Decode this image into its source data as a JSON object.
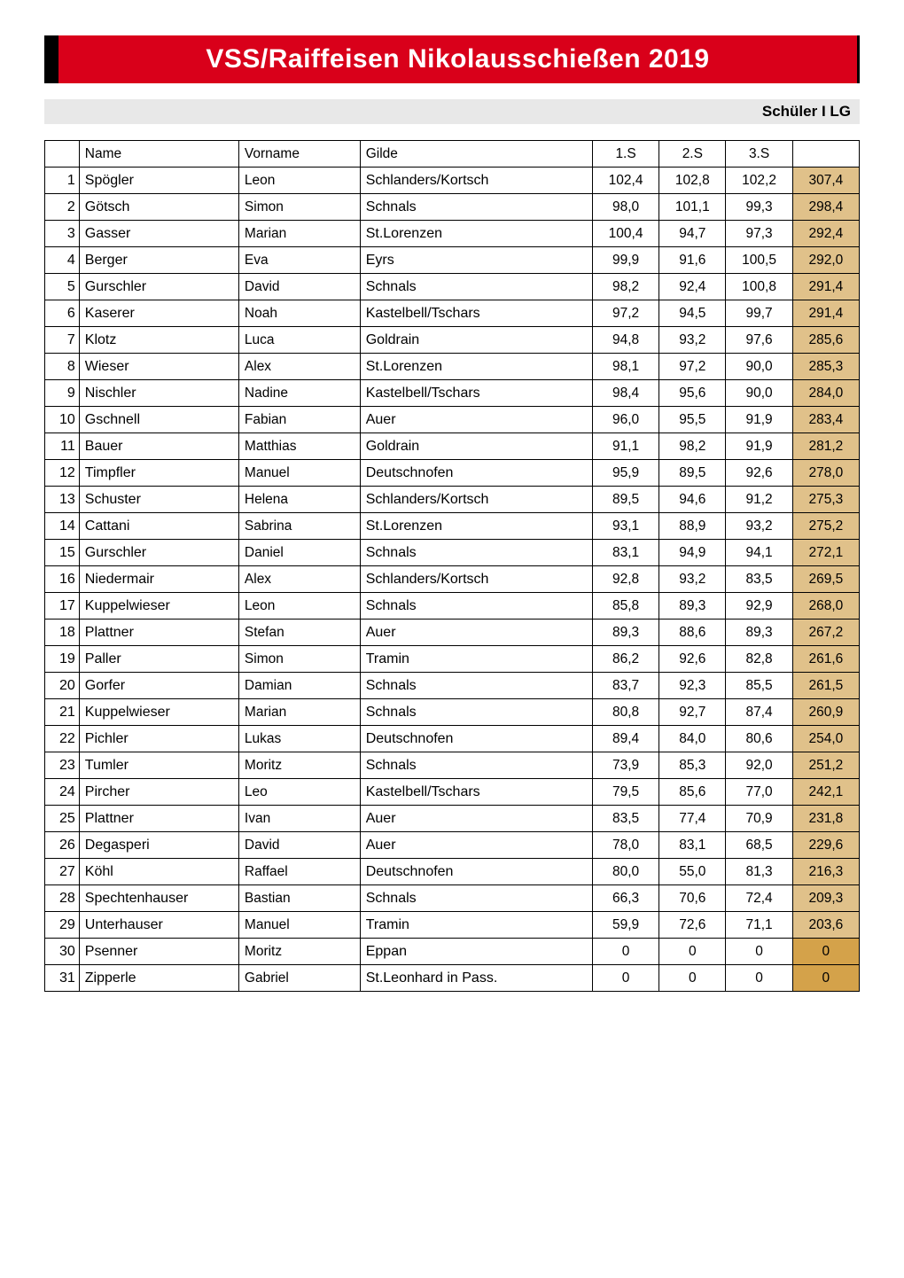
{
  "title": "VSS/Raiffeisen Nikolausschießen 2019",
  "subtitle": "Schüler I LG",
  "table": {
    "headers": {
      "rank": "",
      "name": "Name",
      "vorname": "Vorname",
      "gilde": "Gilde",
      "s1": "1.S",
      "s2": "2.S",
      "s3": "3.S",
      "total": ""
    },
    "colors": {
      "title_bg": "#d9001a",
      "title_border_left": "#000000",
      "title_text": "#ffffff",
      "subtitle_bg": "#e8e8e8",
      "total_bg": "#e0c18a",
      "zero_total_bg": "#d4a24a",
      "border": "#000000",
      "background": "#ffffff"
    },
    "rows": [
      {
        "rank": "1",
        "name": "Spögler",
        "vorname": "Leon",
        "gilde": "Schlanders/Kortsch",
        "s1": "102,4",
        "s2": "102,8",
        "s3": "102,2",
        "total": "307,4"
      },
      {
        "rank": "2",
        "name": "Götsch",
        "vorname": "Simon",
        "gilde": "Schnals",
        "s1": "98,0",
        "s2": "101,1",
        "s3": "99,3",
        "total": "298,4"
      },
      {
        "rank": "3",
        "name": "Gasser",
        "vorname": "Marian",
        "gilde": "St.Lorenzen",
        "s1": "100,4",
        "s2": "94,7",
        "s3": "97,3",
        "total": "292,4"
      },
      {
        "rank": "4",
        "name": "Berger",
        "vorname": "Eva",
        "gilde": "Eyrs",
        "s1": "99,9",
        "s2": "91,6",
        "s3": "100,5",
        "total": "292,0"
      },
      {
        "rank": "5",
        "name": "Gurschler",
        "vorname": "David",
        "gilde": "Schnals",
        "s1": "98,2",
        "s2": "92,4",
        "s3": "100,8",
        "total": "291,4"
      },
      {
        "rank": "6",
        "name": "Kaserer",
        "vorname": "Noah",
        "gilde": "Kastelbell/Tschars",
        "s1": "97,2",
        "s2": "94,5",
        "s3": "99,7",
        "total": "291,4"
      },
      {
        "rank": "7",
        "name": "Klotz",
        "vorname": "Luca",
        "gilde": "Goldrain",
        "s1": "94,8",
        "s2": "93,2",
        "s3": "97,6",
        "total": "285,6"
      },
      {
        "rank": "8",
        "name": "Wieser",
        "vorname": "Alex",
        "gilde": "St.Lorenzen",
        "s1": "98,1",
        "s2": "97,2",
        "s3": "90,0",
        "total": "285,3"
      },
      {
        "rank": "9",
        "name": "Nischler",
        "vorname": "Nadine",
        "gilde": "Kastelbell/Tschars",
        "s1": "98,4",
        "s2": "95,6",
        "s3": "90,0",
        "total": "284,0"
      },
      {
        "rank": "10",
        "name": "Gschnell",
        "vorname": "Fabian",
        "gilde": "Auer",
        "s1": "96,0",
        "s2": "95,5",
        "s3": "91,9",
        "total": "283,4"
      },
      {
        "rank": "11",
        "name": "Bauer",
        "vorname": "Matthias",
        "gilde": "Goldrain",
        "s1": "91,1",
        "s2": "98,2",
        "s3": "91,9",
        "total": "281,2"
      },
      {
        "rank": "12",
        "name": "Timpfler",
        "vorname": "Manuel",
        "gilde": "Deutschnofen",
        "s1": "95,9",
        "s2": "89,5",
        "s3": "92,6",
        "total": "278,0"
      },
      {
        "rank": "13",
        "name": "Schuster",
        "vorname": "Helena",
        "gilde": "Schlanders/Kortsch",
        "s1": "89,5",
        "s2": "94,6",
        "s3": "91,2",
        "total": "275,3"
      },
      {
        "rank": "14",
        "name": "Cattani",
        "vorname": "Sabrina",
        "gilde": "St.Lorenzen",
        "s1": "93,1",
        "s2": "88,9",
        "s3": "93,2",
        "total": "275,2"
      },
      {
        "rank": "15",
        "name": "Gurschler",
        "vorname": "Daniel",
        "gilde": "Schnals",
        "s1": "83,1",
        "s2": "94,9",
        "s3": "94,1",
        "total": "272,1"
      },
      {
        "rank": "16",
        "name": "Niedermair",
        "vorname": "Alex",
        "gilde": "Schlanders/Kortsch",
        "s1": "92,8",
        "s2": "93,2",
        "s3": "83,5",
        "total": "269,5"
      },
      {
        "rank": "17",
        "name": "Kuppelwieser",
        "vorname": "Leon",
        "gilde": "Schnals",
        "s1": "85,8",
        "s2": "89,3",
        "s3": "92,9",
        "total": "268,0"
      },
      {
        "rank": "18",
        "name": "Plattner",
        "vorname": "Stefan",
        "gilde": "Auer",
        "s1": "89,3",
        "s2": "88,6",
        "s3": "89,3",
        "total": "267,2"
      },
      {
        "rank": "19",
        "name": "Paller",
        "vorname": "Simon",
        "gilde": "Tramin",
        "s1": "86,2",
        "s2": "92,6",
        "s3": "82,8",
        "total": "261,6"
      },
      {
        "rank": "20",
        "name": "Gorfer",
        "vorname": "Damian",
        "gilde": "Schnals",
        "s1": "83,7",
        "s2": "92,3",
        "s3": "85,5",
        "total": "261,5"
      },
      {
        "rank": "21",
        "name": "Kuppelwieser",
        "vorname": "Marian",
        "gilde": "Schnals",
        "s1": "80,8",
        "s2": "92,7",
        "s3": "87,4",
        "total": "260,9"
      },
      {
        "rank": "22",
        "name": "Pichler",
        "vorname": "Lukas",
        "gilde": "Deutschnofen",
        "s1": "89,4",
        "s2": "84,0",
        "s3": "80,6",
        "total": "254,0"
      },
      {
        "rank": "23",
        "name": "Tumler",
        "vorname": "Moritz",
        "gilde": "Schnals",
        "s1": "73,9",
        "s2": "85,3",
        "s3": "92,0",
        "total": "251,2"
      },
      {
        "rank": "24",
        "name": "Pircher",
        "vorname": "Leo",
        "gilde": "Kastelbell/Tschars",
        "s1": "79,5",
        "s2": "85,6",
        "s3": "77,0",
        "total": "242,1"
      },
      {
        "rank": "25",
        "name": "Plattner",
        "vorname": "Ivan",
        "gilde": "Auer",
        "s1": "83,5",
        "s2": "77,4",
        "s3": "70,9",
        "total": "231,8"
      },
      {
        "rank": "26",
        "name": "Degasperi",
        "vorname": "David",
        "gilde": "Auer",
        "s1": "78,0",
        "s2": "83,1",
        "s3": "68,5",
        "total": "229,6"
      },
      {
        "rank": "27",
        "name": "Köhl",
        "vorname": "Raffael",
        "gilde": "Deutschnofen",
        "s1": "80,0",
        "s2": "55,0",
        "s3": "81,3",
        "total": "216,3"
      },
      {
        "rank": "28",
        "name": "Spechtenhauser",
        "vorname": "Bastian",
        "gilde": "Schnals",
        "s1": "66,3",
        "s2": "70,6",
        "s3": "72,4",
        "total": "209,3"
      },
      {
        "rank": "29",
        "name": "Unterhauser",
        "vorname": "Manuel",
        "gilde": "Tramin",
        "s1": "59,9",
        "s2": "72,6",
        "s3": "71,1",
        "total": "203,6"
      },
      {
        "rank": "30",
        "name": "Psenner",
        "vorname": "Moritz",
        "gilde": "Eppan",
        "s1": "0",
        "s2": "0",
        "s3": "0",
        "total": "0",
        "zero": true
      },
      {
        "rank": "31",
        "name": "Zipperle",
        "vorname": "Gabriel",
        "gilde": "St.Leonhard in Pass.",
        "s1": "0",
        "s2": "0",
        "s3": "0",
        "total": "0",
        "zero": true
      }
    ]
  }
}
